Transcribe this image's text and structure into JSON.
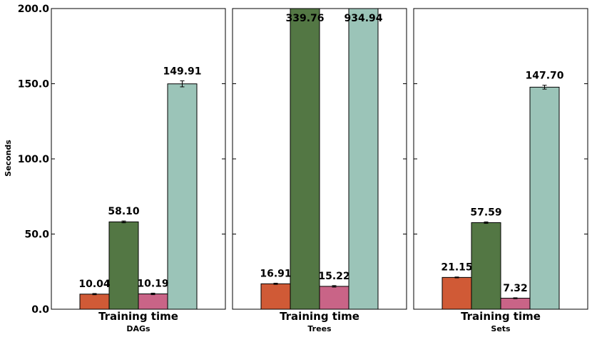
{
  "chart_data": {
    "type": "bar",
    "ylabel": "Seconds",
    "ylim": [
      0,
      200
    ],
    "yticks": [
      0,
      50,
      100,
      150,
      200
    ],
    "ytick_labels": [
      "0.0",
      "50.0",
      "100.0",
      "150.0",
      "200.0"
    ],
    "grid": false,
    "series_colors": [
      "#d05a36",
      "#537744",
      "#c96487",
      "#9bc4b8"
    ],
    "panels": [
      {
        "category": "Training time",
        "subtitle": "DAGs",
        "values": [
          10.04,
          58.1,
          10.19,
          149.91
        ],
        "value_labels": [
          "10.04",
          "58.10",
          "10.19",
          "149.91"
        ],
        "errors": [
          0.4,
          0.6,
          0.5,
          2.0
        ]
      },
      {
        "category": "Training time",
        "subtitle": "Trees",
        "values": [
          16.91,
          339.76,
          15.22,
          934.94
        ],
        "value_labels": [
          "16.91",
          "339.76",
          "15.22",
          "934.94"
        ],
        "errors": [
          0.4,
          0,
          0.5,
          0
        ]
      },
      {
        "category": "Training time",
        "subtitle": "Sets",
        "values": [
          21.15,
          57.59,
          7.32,
          147.7
        ],
        "value_labels": [
          "21.15",
          "57.59",
          "7.32",
          "147.70"
        ],
        "errors": [
          0.3,
          0.5,
          0.3,
          1.3
        ]
      }
    ]
  }
}
